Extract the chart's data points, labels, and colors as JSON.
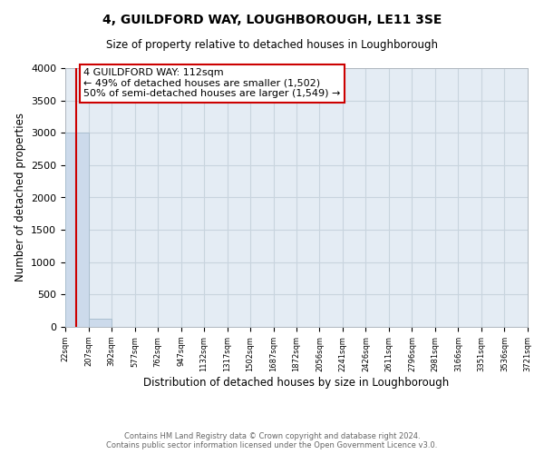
{
  "title": "4, GUILDFORD WAY, LOUGHBOROUGH, LE11 3SE",
  "subtitle": "Size of property relative to detached houses in Loughborough",
  "xlabel": "Distribution of detached houses by size in Loughborough",
  "ylabel": "Number of detached properties",
  "bar_edges": [
    22,
    207,
    392,
    577,
    762,
    947,
    1132,
    1317,
    1502,
    1687,
    1872,
    2056,
    2241,
    2426,
    2611,
    2796,
    2981,
    3166,
    3351,
    3536,
    3721
  ],
  "bar_heights": [
    3000,
    130,
    0,
    0,
    0,
    0,
    0,
    0,
    0,
    0,
    0,
    0,
    0,
    0,
    0,
    0,
    0,
    0,
    0,
    0
  ],
  "bar_color": "#ccdaeb",
  "bar_edge_color": "#aabfcf",
  "property_line_x": 112,
  "property_line_color": "#cc0000",
  "annotation_text": "4 GUILDFORD WAY: 112sqm\n← 49% of detached houses are smaller (1,502)\n50% of semi-detached houses are larger (1,549) →",
  "annotation_box_color": "#ffffff",
  "annotation_box_edge_color": "#cc0000",
  "ylim": [
    0,
    4000
  ],
  "yticks": [
    0,
    500,
    1000,
    1500,
    2000,
    2500,
    3000,
    3500,
    4000
  ],
  "xtick_labels": [
    "22sqm",
    "207sqm",
    "392sqm",
    "577sqm",
    "762sqm",
    "947sqm",
    "1132sqm",
    "1317sqm",
    "1502sqm",
    "1687sqm",
    "1872sqm",
    "2056sqm",
    "2241sqm",
    "2426sqm",
    "2611sqm",
    "2796sqm",
    "2981sqm",
    "3166sqm",
    "3351sqm",
    "3536sqm",
    "3721sqm"
  ],
  "footer_line1": "Contains HM Land Registry data © Crown copyright and database right 2024.",
  "footer_line2": "Contains public sector information licensed under the Open Government Licence v3.0.",
  "bg_color": "#ffffff",
  "plot_bg_color": "#e4ecf4",
  "grid_color": "#c8d4de"
}
